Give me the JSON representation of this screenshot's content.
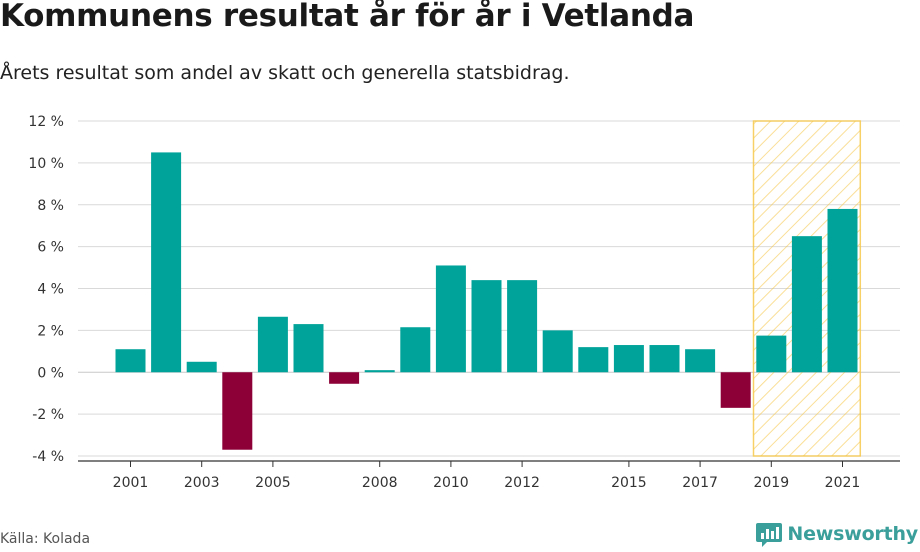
{
  "title": "Kommunens resultat år för år i Vetlanda",
  "subtitle": "Årets resultat som andel av skatt och generella statsbidrag.",
  "source": "Källa: Kolada",
  "brand": {
    "name": "Newsworthy",
    "icon": "newsworthy-logo-icon",
    "color": "#3a9e9a"
  },
  "chart_data": {
    "type": "bar",
    "categories": [
      "2001",
      "2002",
      "2003",
      "2004",
      "2005",
      "2006",
      "2007",
      "2008",
      "2009",
      "2010",
      "2011",
      "2012",
      "2013",
      "2014",
      "2015",
      "2016",
      "2017",
      "2018",
      "2019",
      "2020",
      "2021"
    ],
    "values": [
      1.1,
      10.5,
      0.5,
      -3.7,
      2.65,
      2.3,
      -0.55,
      0.1,
      2.15,
      5.1,
      4.4,
      4.4,
      2.0,
      1.2,
      1.3,
      1.3,
      1.1,
      -1.7,
      1.75,
      6.5,
      7.8
    ],
    "x_tick_labels": [
      "2001",
      "2003",
      "2005",
      "2008",
      "2010",
      "2012",
      "2015",
      "2017",
      "2019",
      "2021"
    ],
    "y_ticks": [
      12,
      10,
      8,
      6,
      4,
      2,
      0,
      -2,
      -4
    ],
    "y_tick_labels": [
      "12 %",
      "10 %",
      "8 %",
      "6 %",
      "4 %",
      "2 %",
      "0 %",
      "-2 %",
      "-4 %"
    ],
    "ylim": [
      -4,
      12
    ],
    "xlabel": "",
    "ylabel": "",
    "grid": true,
    "highlight_range": [
      "2019",
      "2021"
    ],
    "colors": {
      "positive": "#00a39a",
      "negative": "#8c0037",
      "highlight_fill": "#f5c542",
      "grid": "#d9d9d9",
      "axis": "#333333"
    }
  }
}
